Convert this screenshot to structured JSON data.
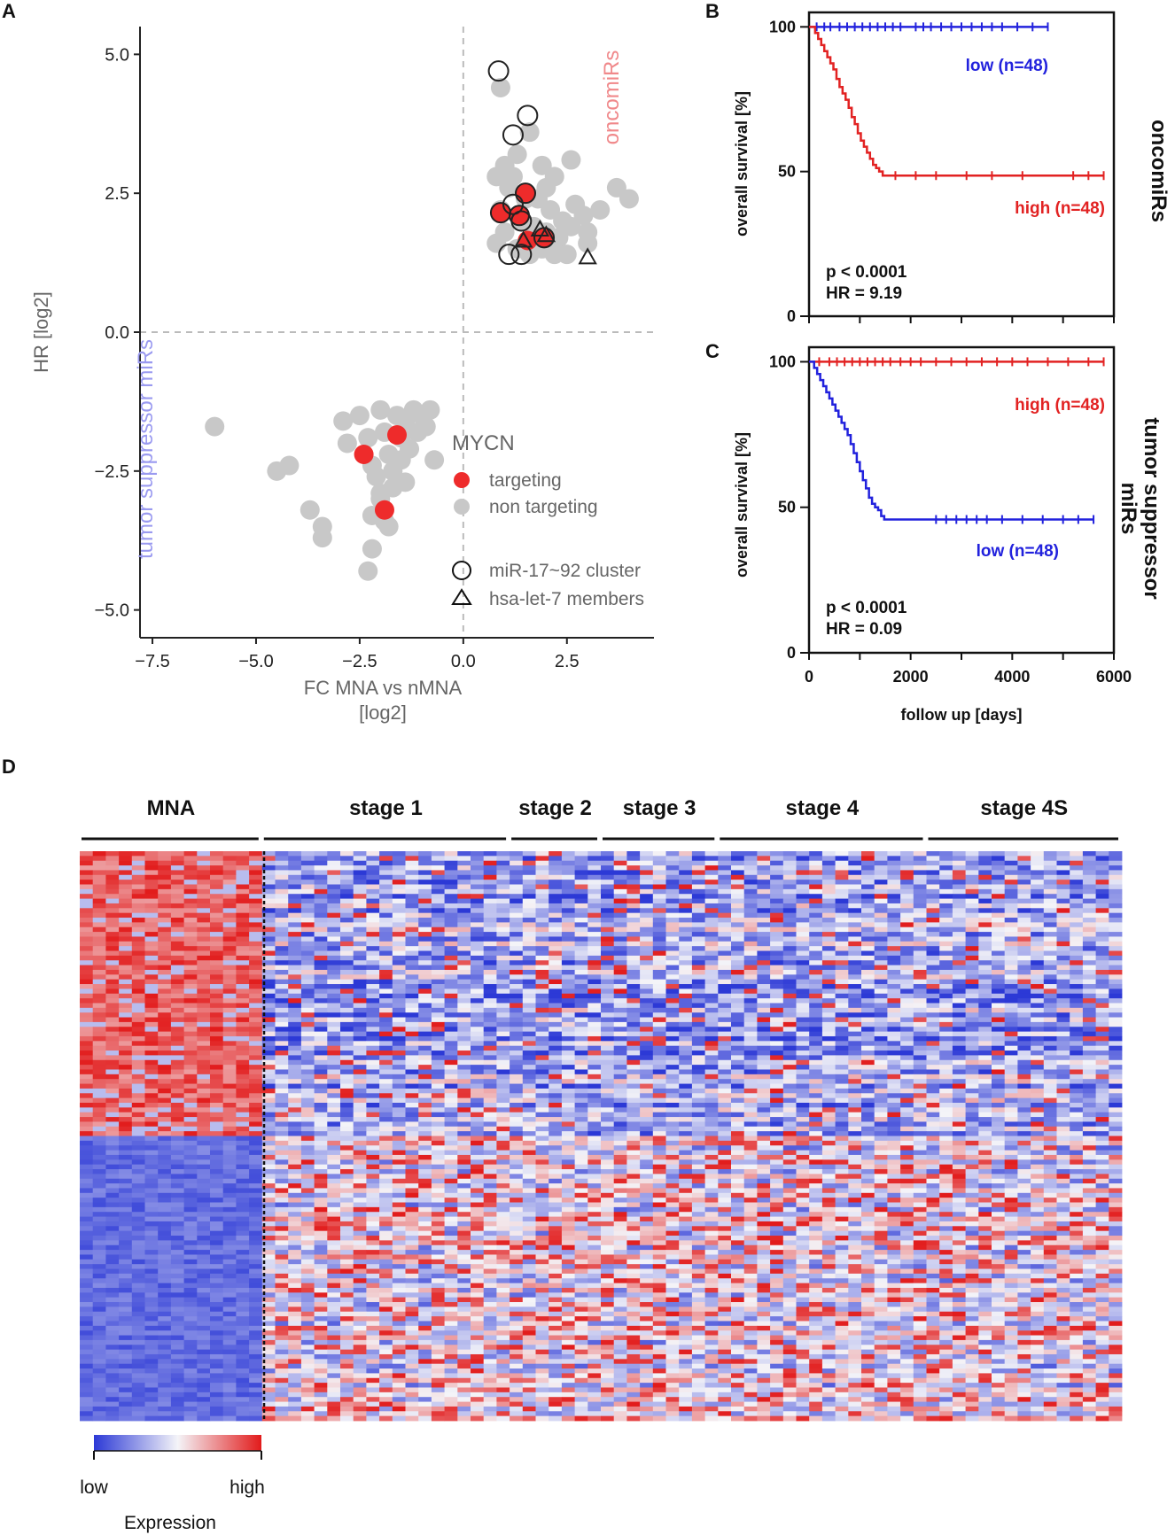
{
  "colors": {
    "targeting": "#ee2b2b",
    "non_targeting": "#c8c8c8",
    "high": "#e22222",
    "low": "#2222dd",
    "heat_low": "#2c39d6",
    "heat_mid": "#f4f4f8",
    "heat_high": "#e21b1b"
  },
  "panels": {
    "A": "A",
    "B": "B",
    "C": "C",
    "D": "D"
  },
  "chart_data": [
    {
      "id": "A",
      "type": "scatter",
      "xlabel_line1": "FC MNA vs nMNA",
      "xlabel_line2": "[log2]",
      "ylabel": "HR [log2]",
      "xlim": [
        -7.8,
        4.6
      ],
      "ylim": [
        -5.5,
        5.5
      ],
      "xticks": [
        -7.5,
        -5.0,
        -2.5,
        0.0,
        2.5
      ],
      "xtick_labels": [
        "−7.5",
        "−5.0",
        "−2.5",
        "0.0",
        "2.5"
      ],
      "yticks": [
        5.0,
        2.5,
        0.0,
        -2.5,
        -5.0
      ],
      "ytick_labels": [
        "5.0",
        "2.5",
        "0.0",
        "−2.5",
        "−5.0"
      ],
      "quadrant_labels": {
        "top_right": "oncomiRs",
        "bottom_left": "tumor suppressor miRs"
      },
      "legend": {
        "title": "MYCN",
        "targeting": "targeting",
        "non_targeting": "non targeting",
        "cluster": "miR-17~92 cluster",
        "let7": "hsa-let-7 members"
      },
      "non_targeting_points": [
        [
          0.9,
          4.4
        ],
        [
          1.3,
          3.2
        ],
        [
          1.0,
          3.0
        ],
        [
          1.6,
          3.6
        ],
        [
          1.9,
          3.0
        ],
        [
          2.2,
          2.8
        ],
        [
          2.6,
          3.1
        ],
        [
          0.8,
          2.8
        ],
        [
          1.1,
          2.6
        ],
        [
          1.5,
          2.4
        ],
        [
          1.8,
          2.4
        ],
        [
          2.1,
          2.2
        ],
        [
          2.4,
          2.0
        ],
        [
          2.7,
          2.3
        ],
        [
          0.9,
          2.2
        ],
        [
          1.4,
          2.0
        ],
        [
          1.7,
          1.9
        ],
        [
          2.0,
          1.8
        ],
        [
          2.3,
          1.7
        ],
        [
          2.6,
          1.9
        ],
        [
          3.0,
          1.6
        ],
        [
          0.8,
          1.6
        ],
        [
          1.0,
          1.8
        ],
        [
          1.3,
          1.5
        ],
        [
          1.6,
          1.4
        ],
        [
          1.9,
          1.5
        ],
        [
          2.2,
          1.4
        ],
        [
          2.5,
          1.4
        ],
        [
          2.9,
          2.1
        ],
        [
          3.3,
          2.2
        ],
        [
          3.7,
          2.6
        ],
        [
          4.0,
          2.4
        ],
        [
          3.0,
          1.8
        ],
        [
          1.2,
          2.8
        ],
        [
          2.0,
          2.6
        ],
        [
          -6.0,
          -1.7
        ],
        [
          -4.5,
          -2.5
        ],
        [
          -4.2,
          -2.4
        ],
        [
          -3.7,
          -3.2
        ],
        [
          -3.4,
          -3.5
        ],
        [
          -3.4,
          -3.7
        ],
        [
          -2.9,
          -1.6
        ],
        [
          -2.8,
          -2.0
        ],
        [
          -2.5,
          -1.5
        ],
        [
          -2.3,
          -1.9
        ],
        [
          -2.2,
          -2.4
        ],
        [
          -2.1,
          -2.6
        ],
        [
          -2.0,
          -1.4
        ],
        [
          -1.9,
          -1.8
        ],
        [
          -1.8,
          -2.2
        ],
        [
          -1.7,
          -2.5
        ],
        [
          -1.6,
          -1.5
        ],
        [
          -1.5,
          -1.9
        ],
        [
          -1.4,
          -1.6
        ],
        [
          -1.3,
          -2.1
        ],
        [
          -1.2,
          -1.4
        ],
        [
          -1.1,
          -1.8
        ],
        [
          -1.0,
          -1.5
        ],
        [
          -0.9,
          -1.7
        ],
        [
          -0.8,
          -1.4
        ],
        [
          -0.7,
          -2.3
        ],
        [
          -1.4,
          -2.7
        ],
        [
          -1.7,
          -2.8
        ],
        [
          -2.0,
          -3.0
        ],
        [
          -2.2,
          -3.3
        ],
        [
          -1.9,
          -3.4
        ],
        [
          -1.8,
          -3.5
        ],
        [
          -2.2,
          -3.9
        ],
        [
          -2.3,
          -4.3
        ],
        [
          -2.0,
          -2.9
        ],
        [
          -1.5,
          -2.3
        ]
      ],
      "targeting_points": [
        [
          1.5,
          2.5
        ],
        [
          0.9,
          2.15
        ],
        [
          1.35,
          2.1
        ],
        [
          1.55,
          1.65
        ],
        [
          1.95,
          1.7
        ],
        [
          -1.6,
          -1.85
        ],
        [
          -2.4,
          -2.2
        ],
        [
          -1.9,
          -3.2
        ]
      ],
      "cluster_points": [
        [
          0.85,
          4.7
        ],
        [
          1.55,
          3.9
        ],
        [
          1.2,
          3.55
        ],
        [
          1.2,
          2.3
        ],
        [
          1.4,
          2.0
        ],
        [
          1.1,
          1.4
        ],
        [
          1.4,
          1.4
        ],
        [
          1.5,
          2.5
        ],
        [
          0.9,
          2.15
        ],
        [
          1.35,
          2.1
        ],
        [
          1.95,
          1.7
        ]
      ],
      "let7_points": [
        [
          1.45,
          1.65
        ],
        [
          1.85,
          1.85
        ],
        [
          2.0,
          1.75
        ],
        [
          3.0,
          1.35
        ]
      ]
    },
    {
      "id": "B",
      "type": "line",
      "title_side": "oncomiRs",
      "ylabel": "overall survival [%]",
      "xlim": [
        0,
        6000
      ],
      "ylim": [
        0,
        105
      ],
      "yticks": [
        0,
        50,
        100
      ],
      "ytick_labels": [
        "0",
        "50",
        "100"
      ],
      "stats_p": "p < 0.0001",
      "stats_hr": "HR = 9.19",
      "series": [
        {
          "name": "low (n=48)",
          "role": "low",
          "x": [
            0,
            4700
          ],
          "y": [
            100,
            100
          ],
          "censor": [
            150,
            300,
            420,
            600,
            750,
            900,
            1050,
            1200,
            1350,
            1500,
            1650,
            1800,
            2100,
            2250,
            2400,
            2600,
            2800,
            3000,
            3200,
            3400,
            3600,
            3800,
            4100,
            4400,
            4700
          ]
        },
        {
          "name": "high (n=48)",
          "role": "high",
          "x": [
            0,
            120,
            180,
            240,
            300,
            360,
            420,
            480,
            540,
            600,
            660,
            720,
            780,
            840,
            900,
            960,
            1020,
            1080,
            1140,
            1200,
            1260,
            1320,
            1380,
            1450,
            1500,
            5800
          ],
          "y": [
            100,
            97.9,
            95.8,
            93.7,
            91.6,
            89.5,
            87.4,
            85.3,
            82,
            79.2,
            77,
            74.8,
            72,
            68.8,
            66.4,
            63.2,
            60.7,
            58.6,
            56.5,
            54.4,
            52.3,
            51.2,
            50,
            48.6,
            48.6,
            48.6
          ],
          "censor": [
            1700,
            2100,
            2500,
            3100,
            3600,
            4200,
            5200,
            5500,
            5800
          ]
        }
      ]
    },
    {
      "id": "C",
      "type": "line",
      "title_side_line1": "tumor suppressor",
      "title_side_line2": "miRs",
      "xlabel": "follow up [days]",
      "ylabel": "overall survival [%]",
      "xlim": [
        0,
        6000
      ],
      "ylim": [
        0,
        105
      ],
      "xticks": [
        0,
        2000,
        4000,
        6000
      ],
      "xtick_labels": [
        "0",
        "2000",
        "4000",
        "6000"
      ],
      "yticks": [
        0,
        50,
        100
      ],
      "ytick_labels": [
        "0",
        "50",
        "100"
      ],
      "stats_p": "p < 0.0001",
      "stats_hr": "HR = 0.09",
      "series": [
        {
          "name": "high (n=48)",
          "role": "high",
          "x": [
            0,
            5800
          ],
          "y": [
            100,
            100
          ],
          "censor": [
            200,
            400,
            550,
            700,
            850,
            1000,
            1150,
            1300,
            1450,
            1600,
            1800,
            2000,
            2200,
            2500,
            2800,
            3100,
            3400,
            3700,
            4000,
            4300,
            4700,
            5100,
            5500,
            5800
          ]
        },
        {
          "name": "low (n=48)",
          "role": "low",
          "x": [
            0,
            100,
            160,
            220,
            280,
            340,
            400,
            460,
            520,
            580,
            640,
            700,
            760,
            820,
            880,
            940,
            1000,
            1060,
            1120,
            1180,
            1240,
            1300,
            1360,
            1420,
            1480,
            5600
          ],
          "y": [
            100,
            97.9,
            95.8,
            93.7,
            91.6,
            89.5,
            87.4,
            85.3,
            83.2,
            81.1,
            79,
            76.9,
            74.8,
            71.7,
            68.6,
            65.5,
            62.4,
            59.3,
            56.5,
            53.3,
            51.2,
            50,
            49,
            47,
            45.8,
            45.8
          ],
          "censor": [
            2500,
            2700,
            2900,
            3100,
            3300,
            3500,
            3800,
            4200,
            4600,
            5000,
            5300,
            5600
          ]
        }
      ]
    },
    {
      "id": "D",
      "type": "heatmap",
      "groups": [
        "MNA",
        "stage 1",
        "stage 2",
        "stage 3",
        "stage 4",
        "stage 4S"
      ],
      "group_columns": [
        14,
        19,
        7,
        9,
        16,
        15
      ],
      "rows": 120,
      "oncomir_rows": 60,
      "colorbar_low": "low",
      "colorbar_high": "high",
      "colorbar_title": "Expression"
    }
  ]
}
